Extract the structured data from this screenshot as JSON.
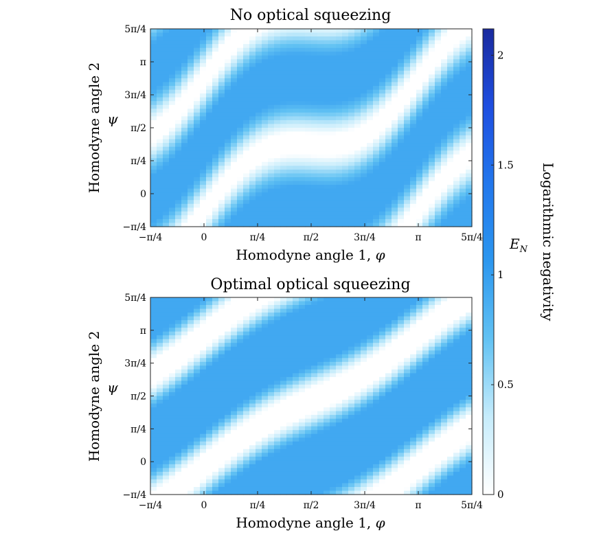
{
  "figure": {
    "colorbar": {
      "label": "Logarithmic negativity",
      "symbol": "E",
      "symbol_sub": "N",
      "ticks": [
        "0",
        "0.5",
        "1",
        "1.5",
        "2"
      ],
      "tick_values": [
        0,
        0.5,
        1,
        1.5,
        2
      ],
      "range": [
        0,
        2.12
      ],
      "colors": [
        "#ffffff",
        "#c6ecfb",
        "#62c2f3",
        "#2c97ef",
        "#2277ec",
        "#1e4ee0",
        "#1a2a9e"
      ]
    }
  },
  "chart_data": [
    {
      "type": "heatmap",
      "title": "No optical squeezing",
      "xlabel": "Homodyne angle 1, ",
      "xlabel_symbol": "φ",
      "ylabel": "Homodyne angle 2",
      "ylabel_symbol": "ψ",
      "xlim": [
        -0.7854,
        3.927
      ],
      "ylim": [
        -0.7854,
        3.927
      ],
      "xtick_labels": [
        "−π/4",
        "0",
        "π/4",
        "π/2",
        "3π/4",
        "π",
        "5π/4"
      ],
      "ytick_labels": [
        "−π/4",
        "0",
        "π/4",
        "π/2",
        "3π/4",
        "π",
        "5π/4"
      ],
      "value_range": [
        0,
        0.95
      ],
      "pattern": "S-shaped bands of negativity (~0.9) following ψ ≈ φ + 0.55·sin(2φ) + kπ; zero near ψ ≈ φ diagonal"
    },
    {
      "type": "heatmap",
      "title": "Optimal optical squeezing",
      "xlabel": "Homodyne angle 1, ",
      "xlabel_symbol": "φ",
      "ylabel": "Homodyne angle 2",
      "ylabel_symbol": "ψ",
      "xlim": [
        -0.7854,
        3.927
      ],
      "ylim": [
        -0.7854,
        3.927
      ],
      "xtick_labels": [
        "−π/4",
        "0",
        "π/4",
        "π/2",
        "3π/4",
        "π",
        "5π/4"
      ],
      "ytick_labels": [
        "−π/4",
        "0",
        "π/4",
        "π/2",
        "3π/4",
        "π",
        "5π/4"
      ],
      "value_range": [
        0,
        0.95
      ],
      "pattern": "Broad diagonal bands of negativity (~0.9) along ψ ≈ φ + π/2 + kπ with slight waviness; zero along ψ ≈ φ"
    }
  ]
}
